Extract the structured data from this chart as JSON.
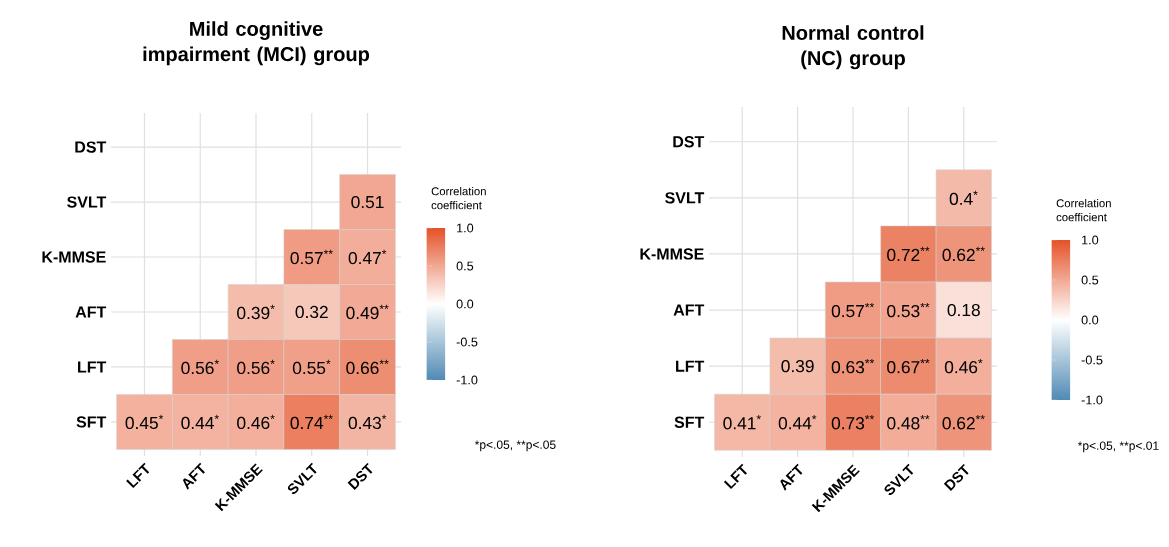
{
  "chart_data": [
    {
      "type": "heatmap",
      "title": "Mild cognitive impairment (MCI) group",
      "clabel": "Correlation coefficient",
      "categories": [
        "LFT",
        "AFT",
        "K-MMSE",
        "SVLT",
        "DST"
      ],
      "y_categories": [
        "DST",
        "SVLT",
        "K-MMSE",
        "AFT",
        "LFT",
        "SFT"
      ],
      "cells": [
        [
          null,
          null,
          null,
          null,
          null
        ],
        [
          null,
          null,
          null,
          null,
          0.51
        ],
        [
          null,
          null,
          null,
          0.57,
          0.47
        ],
        [
          null,
          null,
          0.39,
          0.32,
          0.49
        ],
        [
          null,
          0.56,
          0.56,
          0.55,
          0.66
        ],
        [
          0.45,
          0.44,
          0.46,
          0.74,
          0.43
        ]
      ],
      "cell_labels": [
        [
          null,
          null,
          null,
          null,
          null
        ],
        [
          null,
          null,
          null,
          null,
          "0.51"
        ],
        [
          null,
          null,
          null,
          "0.57$^{**}$",
          "0.47$^{*}$"
        ],
        [
          null,
          null,
          "0.39$^{*}$",
          "0.32",
          "0.49$^{**}$"
        ],
        [
          null,
          "0.56$^{*}$",
          "0.56$^{*}$",
          "0.55$^{*}$",
          "0.66$^{**}$"
        ],
        [
          "0.45$^{*}$",
          "0.44$^{*}$",
          "0.46$^{*}$",
          "0.74$^{**}$",
          "0.43$^{*}$"
        ]
      ],
      "clim": [
        -1,
        1
      ],
      "cticks": [
        {
          "value": -1,
          "label": "-1.0"
        },
        {
          "value": -0.5,
          "label": "-0.5"
        },
        {
          "value": 0,
          "label": "0.0"
        },
        {
          "value": 0.5,
          "label": "0.5"
        },
        {
          "value": 1,
          "label": "1.0"
        }
      ],
      "grid": true,
      "annotations": [
        "*p<.05, **p<.05"
      ]
    },
    {
      "type": "heatmap",
      "title": "Normal control (NC) group",
      "clabel": "Correlation coefficient",
      "categories": [
        "LFT",
        "AFT",
        "K-MMSE",
        "SVLT",
        "DST"
      ],
      "y_categories": [
        "DST",
        "SVLT",
        "K-MMSE",
        "AFT",
        "LFT",
        "SFT"
      ],
      "cells": [
        [
          null,
          null,
          null,
          null,
          null
        ],
        [
          null,
          null,
          null,
          null,
          0.4
        ],
        [
          null,
          null,
          null,
          0.72,
          0.62
        ],
        [
          null,
          null,
          0.57,
          0.53,
          0.18
        ],
        [
          null,
          0.39,
          0.63,
          0.67,
          0.46
        ],
        [
          0.41,
          0.44,
          0.73,
          0.48,
          0.62
        ]
      ],
      "cell_labels": [
        [
          null,
          null,
          null,
          null,
          null
        ],
        [
          null,
          null,
          null,
          null,
          "0.4$^{*}$"
        ],
        [
          null,
          null,
          null,
          "0.72$^{**}$",
          "0.62$^{**}$"
        ],
        [
          null,
          null,
          "0.57$^{**}$",
          "0.53$^{**}$",
          "0.18"
        ],
        [
          null,
          "0.39",
          "0.63$^{**}$",
          "0.67$^{**}$",
          "0.46$^{*}$"
        ],
        [
          "0.41$^{*}$",
          "0.44$^{*}$",
          "0.73$^{**}$",
          "0.48$^{**}$",
          "0.62$^{**}$"
        ]
      ],
      "clim": [
        -1,
        1
      ],
      "cticks": [
        {
          "value": -1,
          "label": "-1.0"
        },
        {
          "value": -0.5,
          "label": "-0.5"
        },
        {
          "value": 0,
          "label": "0.0"
        },
        {
          "value": 0.5,
          "label": "0.5"
        },
        {
          "value": 1,
          "label": "1.0"
        }
      ],
      "grid": true,
      "annotations": [
        "*p<.05, **p<.01"
      ]
    }
  ]
}
